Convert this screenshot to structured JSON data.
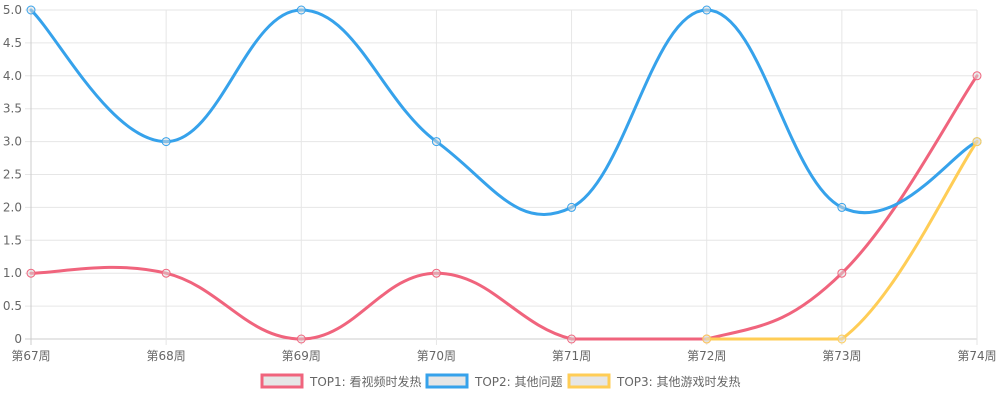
{
  "chart_data": {
    "type": "line",
    "categories": [
      "第67周",
      "第68周",
      "第69周",
      "第70周",
      "第71周",
      "第72周",
      "第73周",
      "第74周"
    ],
    "ylim": [
      0,
      5
    ],
    "y_ticks": [
      "0",
      "0.5",
      "1.0",
      "1.5",
      "2.0",
      "2.5",
      "3.0",
      "3.5",
      "4.0",
      "4.5",
      "5.0"
    ],
    "grid": true,
    "legend_position": "bottom",
    "series": [
      {
        "name": "TOP1: 看视频时发热",
        "color": "#f0647d",
        "values": [
          1,
          1,
          0,
          1,
          0,
          0,
          1,
          4
        ]
      },
      {
        "name": "TOP2: 其他问题",
        "color": "#36a2eb",
        "values": [
          5,
          3,
          5,
          3,
          2,
          5,
          2,
          3
        ]
      },
      {
        "name": "TOP3: 其他游戏时发热",
        "color": "#ffcd56",
        "values": [
          null,
          null,
          null,
          null,
          null,
          0,
          0,
          3
        ]
      }
    ]
  }
}
